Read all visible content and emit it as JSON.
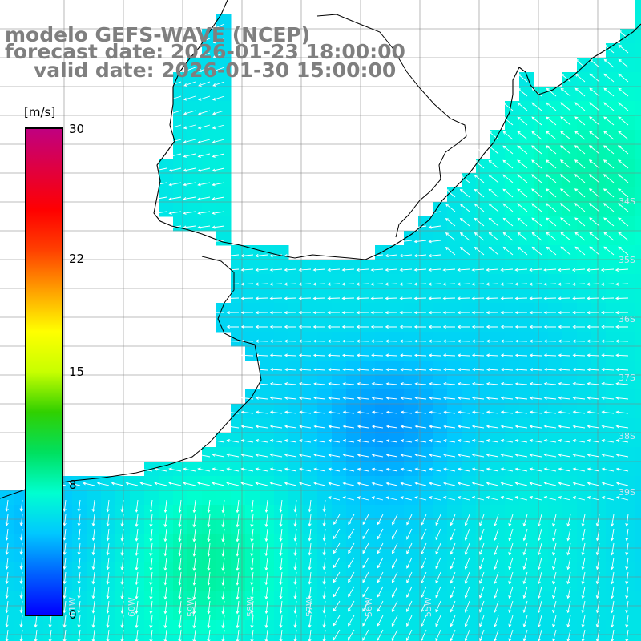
{
  "title": {
    "line1": "modelo GEFS-WAVE (NCEP)",
    "line2": "forecast date: 2026-01-23 18:00:00",
    "line3": "valid date: 2026-01-30 15:00:00"
  },
  "colorbar": {
    "units": "[m/s]",
    "min": 0,
    "max": 30,
    "ticks": [
      {
        "value": 30,
        "label": "30"
      },
      {
        "value": 22,
        "label": "22"
      },
      {
        "value": 15,
        "label": "15"
      },
      {
        "value": 8,
        "label": "8"
      },
      {
        "value": 0,
        "label": "0"
      }
    ],
    "colors": [
      "#0000ff",
      "#0060ff",
      "#00c8ff",
      "#00ffd0",
      "#00e060",
      "#30d000",
      "#c8ff00",
      "#ffff00",
      "#ffa000",
      "#ff4000",
      "#ff0000",
      "#e00040",
      "#c00080"
    ]
  },
  "field": {
    "variable": "wind",
    "units": "m/s",
    "color_land": "#ffffff",
    "color_grid": "#808080",
    "color_coast": "#000000",
    "color_arrows": "#ffffff"
  },
  "lat_labels": [
    "34S",
    "35S",
    "36S",
    "37S",
    "38S",
    "39S"
  ],
  "lon_labels": [
    "61W",
    "60W",
    "59W",
    "58W",
    "57W",
    "56W",
    "55W"
  ]
}
